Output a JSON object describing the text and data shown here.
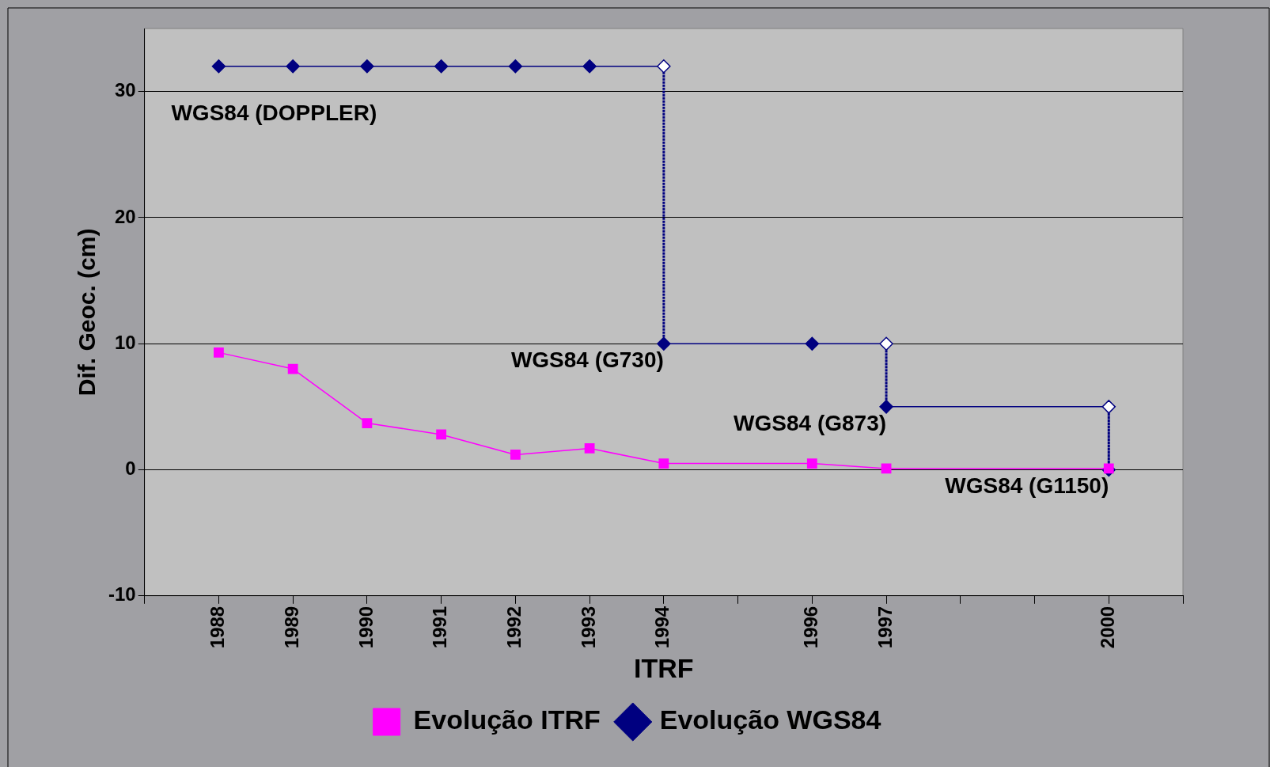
{
  "chart_data": {
    "type": "line",
    "xlabel": "ITRF",
    "ylabel": "Dif. Geoc. (cm)",
    "xlim": [
      1987,
      2001
    ],
    "xticks": [
      {
        "value": 1987,
        "label": null
      },
      1988,
      1989,
      1990,
      1991,
      1992,
      1993,
      1994,
      {
        "value": 1995,
        "label": null
      },
      1996,
      1997,
      {
        "value": 1998,
        "label": null
      },
      {
        "value": 1999,
        "label": null
      },
      2000,
      {
        "value": 2001,
        "label": null
      }
    ],
    "ylim": [
      -10,
      35
    ],
    "yticks": [
      -10,
      0,
      10,
      20,
      30
    ],
    "grid": "y",
    "legend": "bottom",
    "series": [
      {
        "name": "Evolução ITRF",
        "color": "#ff00ff",
        "marker": "square",
        "x": [
          1988,
          1989,
          1990,
          1991,
          1992,
          1993,
          1994,
          1996,
          1997,
          2000
        ],
        "values": [
          9.3,
          8,
          3.7,
          2.8,
          1.2,
          1.7,
          0.5,
          0.5,
          0.1,
          0.1
        ]
      },
      {
        "name": "Evolução WGS84",
        "color": "#000080",
        "marker": "diamond",
        "x": [
          1988,
          1989,
          1990,
          1991,
          1992,
          1993,
          1994,
          1994,
          1996,
          1997,
          1997,
          2000,
          2000
        ],
        "values": [
          32,
          32,
          32,
          32,
          32,
          32,
          32,
          10,
          10,
          10,
          5,
          5,
          0
        ],
        "colors": [
          "#000080",
          "#000080",
          "#000080",
          "#000080",
          "#000080",
          "#000080",
          "#ffffff",
          "#000080",
          "#000080",
          "#ffffff",
          "#000080",
          "#ffffff",
          "#000080"
        ]
      }
    ],
    "annotations": [
      {
        "text": "WGS84 (DOPPLER)",
        "x": 1988,
        "y": 32
      },
      {
        "text": "WGS84 (G730)",
        "x": 1994,
        "y": 10
      },
      {
        "text": "WGS84 (G873)",
        "x": 1997,
        "y": 5
      },
      {
        "text": "WGS84 (G1150)",
        "x": 2000,
        "y": 0
      }
    ]
  }
}
